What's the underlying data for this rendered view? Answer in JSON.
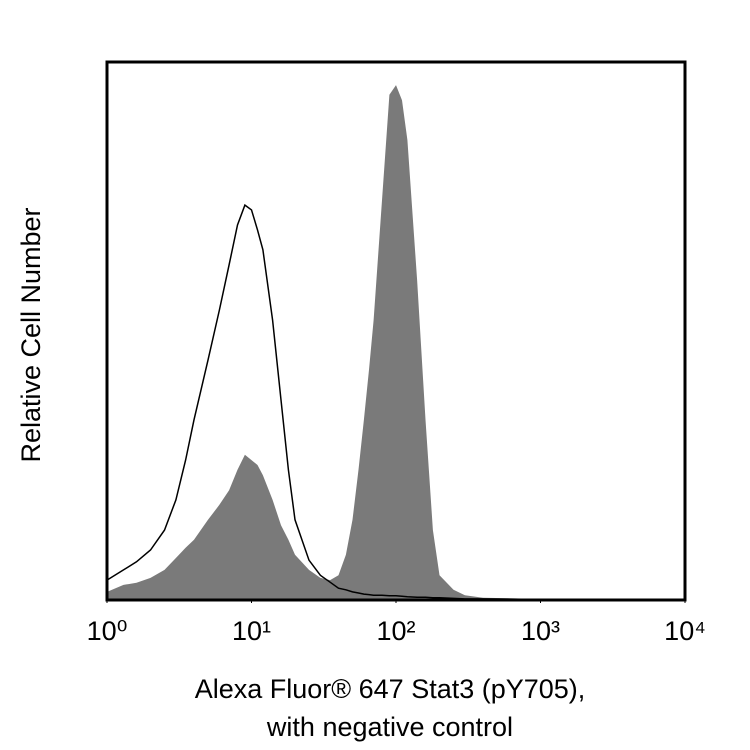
{
  "chart_data": {
    "type": "histogram-overlay",
    "x_label": [
      "Alexa Fluor® 647 Stat3 (pY705),",
      "with negative control"
    ],
    "y_label": "Relative Cell Number",
    "xscale": "log",
    "xlim": [
      1,
      10000
    ],
    "xticks": [
      {
        "value": 1,
        "label": "10⁰"
      },
      {
        "value": 10,
        "label": "10¹"
      },
      {
        "value": 100,
        "label": "10²"
      },
      {
        "value": 1000,
        "label": "10³"
      },
      {
        "value": 10000,
        "label": "10⁴"
      }
    ],
    "ylim": [
      0,
      100
    ],
    "x": [
      1,
      1.3,
      1.6,
      2,
      2.5,
      3,
      3.5,
      4,
      5,
      6,
      7,
      8,
      9,
      10,
      11,
      12,
      14,
      16,
      18,
      20,
      25,
      30,
      35,
      40,
      45,
      50,
      55,
      60,
      65,
      70,
      80,
      90,
      100,
      110,
      120,
      140,
      160,
      180,
      200,
      250,
      300,
      400,
      1000,
      10000
    ],
    "series": [
      {
        "style": "filled",
        "color": "#7a7a7a",
        "values": [
          1.5,
          2.8,
          3.2,
          4.1,
          5.6,
          7.8,
          9.7,
          11.2,
          14.9,
          17.7,
          20.4,
          24.2,
          27,
          26,
          25.1,
          23.2,
          18.6,
          13.9,
          11.2,
          8.4,
          5.6,
          4.1,
          3.7,
          4.6,
          8.4,
          14.9,
          24.2,
          33.5,
          42.8,
          52,
          74.3,
          93.9,
          95.7,
          92.9,
          85.5,
          59.5,
          33.5,
          13,
          4.6,
          1.9,
          0.9,
          0.4,
          0.2,
          0.2
        ]
      },
      {
        "style": "outline",
        "color": "#000000",
        "values": [
          3.7,
          5.6,
          7.1,
          9.3,
          13,
          18.6,
          26,
          33.5,
          44.6,
          53.9,
          62.3,
          69.7,
          73.4,
          72.5,
          68.8,
          65.1,
          52,
          37.2,
          24.2,
          14.9,
          7.4,
          4.6,
          3.3,
          2.2,
          1.9,
          1.5,
          1.3,
          1.1,
          1,
          0.9,
          0.9,
          0.8,
          0.8,
          0.7,
          0.6,
          0.5,
          0.5,
          0.4,
          0.4,
          0.3,
          0.2,
          0.2,
          0.1,
          0.1
        ]
      }
    ]
  }
}
